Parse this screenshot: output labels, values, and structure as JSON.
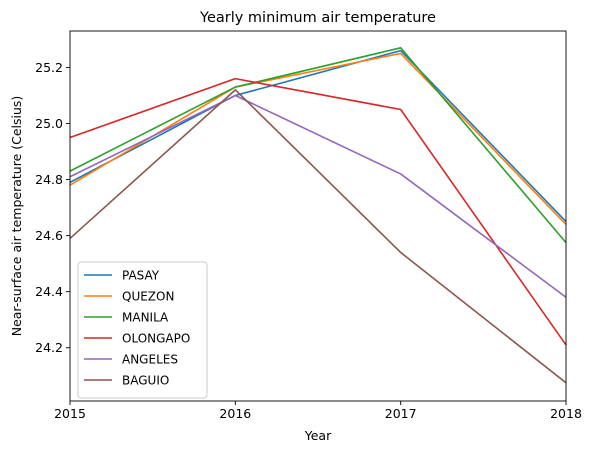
{
  "chart_data": {
    "type": "line",
    "title": "Yearly minimum air temperature",
    "xlabel": "Year",
    "ylabel": "Near-surface air temperature (Celsius)",
    "x": [
      2015,
      2016,
      2017,
      2018
    ],
    "xticks": [
      "2015",
      "2016",
      "2017",
      "2018"
    ],
    "yticks": [
      "24.2",
      "24.4",
      "24.6",
      "24.8",
      "25.0",
      "25.2"
    ],
    "ylim": [
      24.01,
      25.33
    ],
    "xlim": [
      2015,
      2018
    ],
    "grid": false,
    "legend_position": "lower-left",
    "series": [
      {
        "name": "PASAY",
        "color": "#1f77b4",
        "values": [
          24.79,
          25.1,
          25.26,
          24.65
        ]
      },
      {
        "name": "QUEZON",
        "color": "#ff7f0e",
        "values": [
          24.78,
          25.13,
          25.25,
          24.64
        ]
      },
      {
        "name": "MANILA",
        "color": "#2ca02c",
        "values": [
          24.83,
          25.13,
          25.27,
          24.575
        ]
      },
      {
        "name": "OLONGAPO",
        "color": "#d62728",
        "values": [
          24.95,
          25.16,
          25.05,
          24.21
        ]
      },
      {
        "name": "ANGELES",
        "color": "#9467bd",
        "values": [
          24.81,
          25.1,
          24.82,
          24.38
        ]
      },
      {
        "name": "BAGUIO",
        "color": "#8c564b",
        "values": [
          24.59,
          25.12,
          24.54,
          24.075
        ]
      }
    ]
  }
}
